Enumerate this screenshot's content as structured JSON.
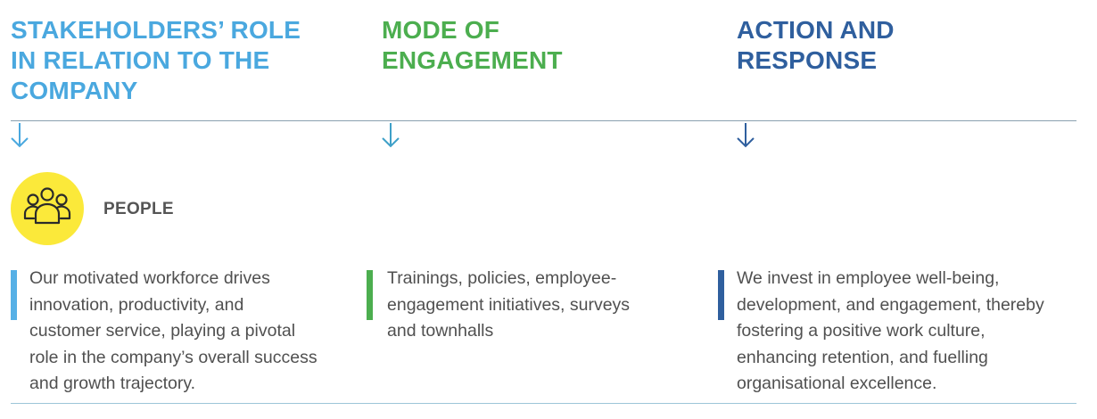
{
  "headings": {
    "role": "STAKEHOLDERS’ ROLE\nIN RELATION TO THE\nCOMPANY",
    "mode": "MODE OF\nENGAGEMENT",
    "action": "ACTION AND\nRESPONSE"
  },
  "colors": {
    "role": "#4aa8df",
    "mode": "#4cae4f",
    "action": "#2f5f9e",
    "people_badge": "#fbe93a",
    "body_text": "#505050"
  },
  "stakeholder": {
    "icon": "people-group-icon",
    "label": "PEOPLE"
  },
  "columns": {
    "role_text": "Our motivated workforce drives\ninnovation, productivity, and\ncustomer service, playing a pivotal\nrole in the company’s overall success\nand growth trajectory.",
    "mode_text": "Trainings, policies, employee-\nengagement initiatives, surveys\nand townhalls",
    "action_text": "We invest in employee well-being,\ndevelopment, and engagement, thereby\nfostering a positive work culture,\nenhancing retention, and fuelling\norganisational excellence."
  }
}
